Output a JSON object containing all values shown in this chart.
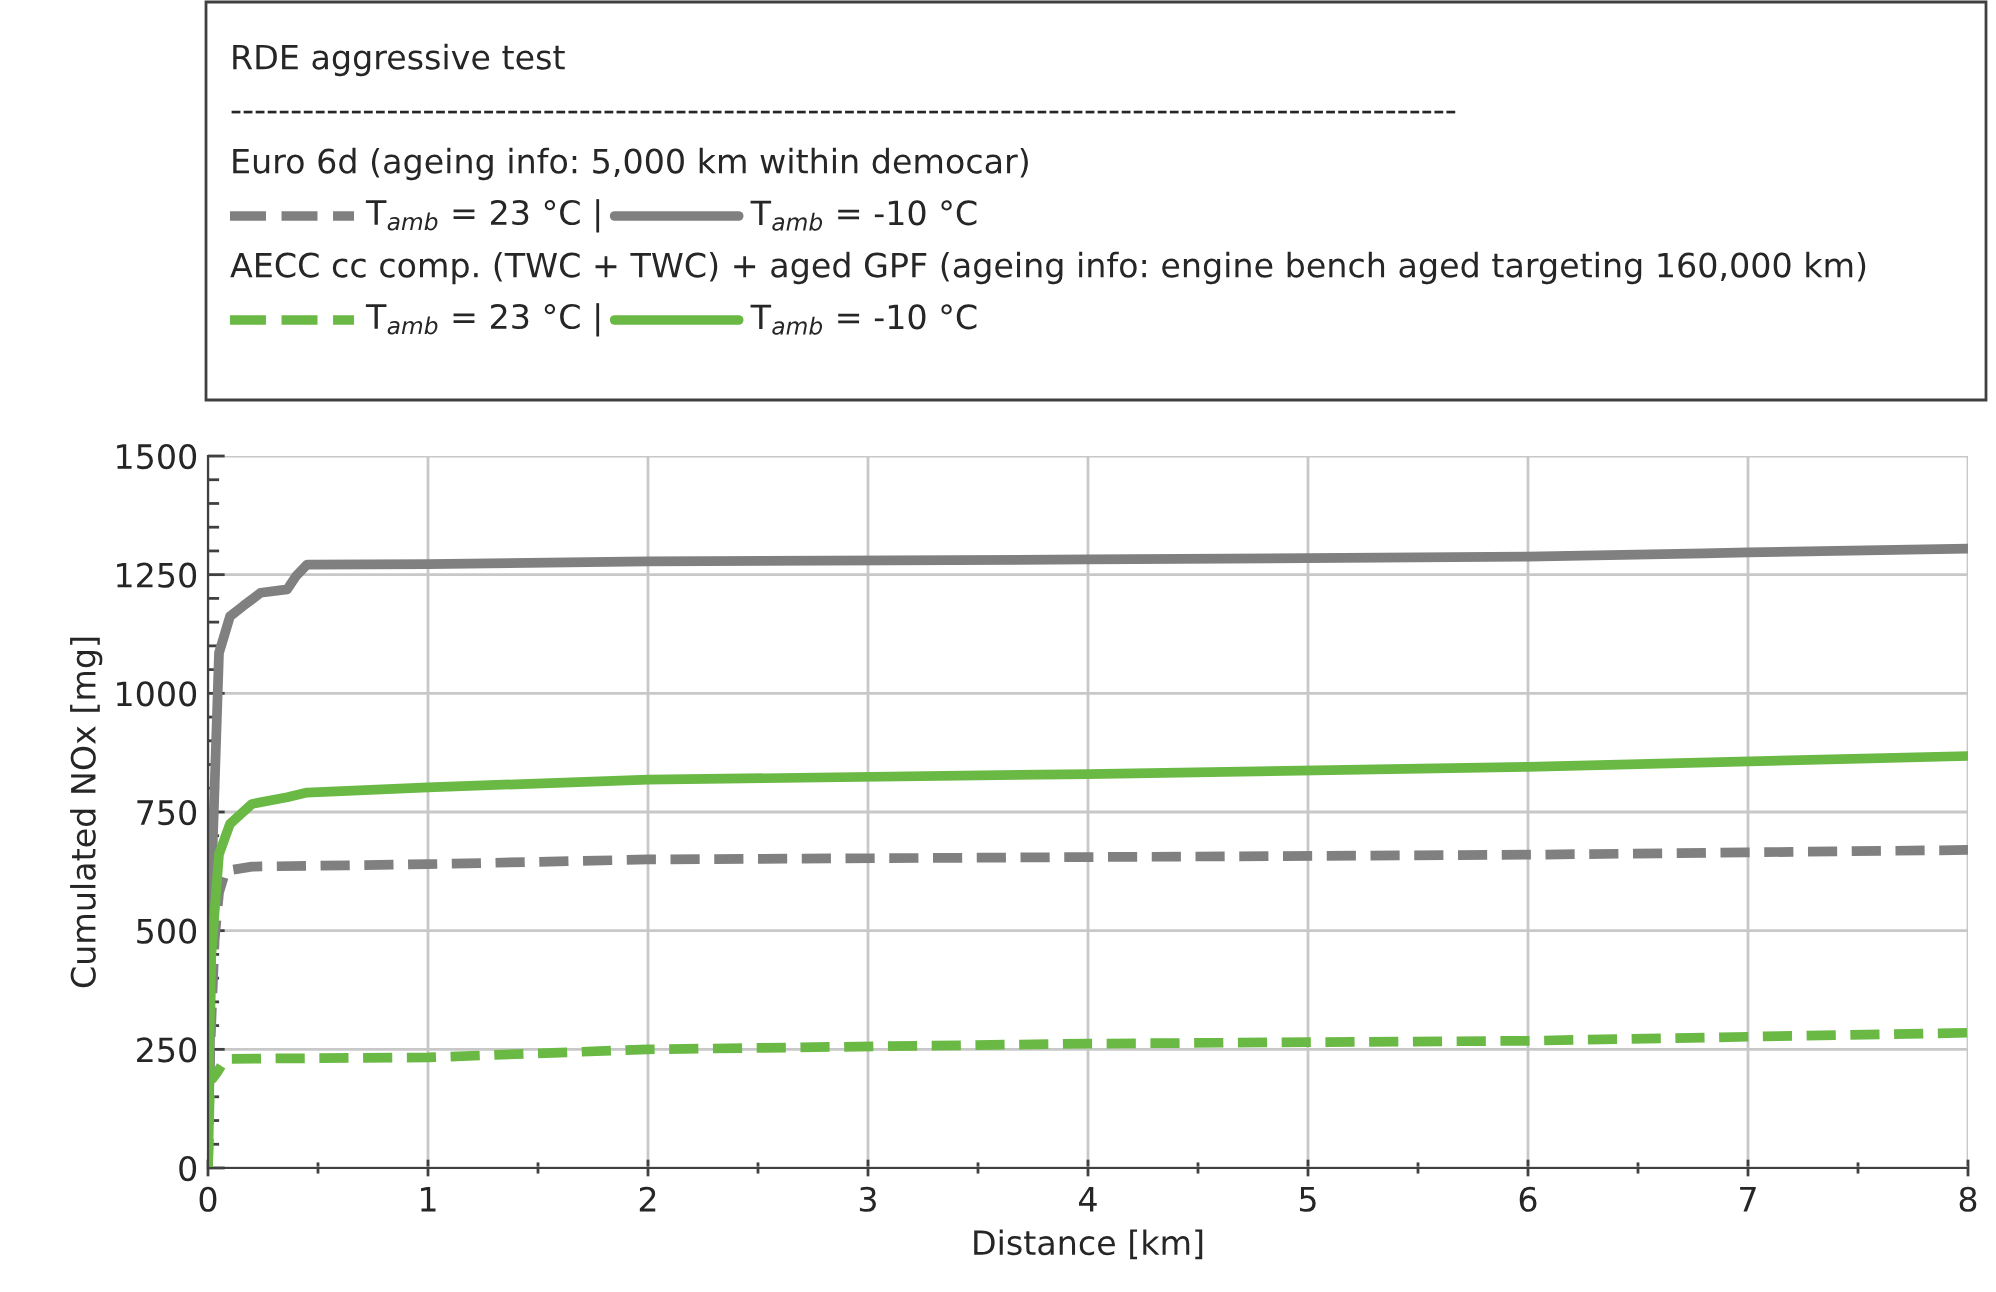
{
  "chart_data": {
    "type": "line",
    "legend_title": "RDE aggressive test",
    "xlabel": "Distance [km]",
    "ylabel": "Cumulated NOx [mg]",
    "annotations": [
      "------------------------------------------------------------------------------------------------------",
      "Euro 6d (ageing info: 5,000 km within democar)",
      "AECC cc comp. (TWC + TWC) + aged GPF (ageing info: engine bench aged targeting 160,000 km)"
    ],
    "series": [
      {
        "name": "T$_{amb}$ = 23 °C |",
        "color": "#808080",
        "line_style": "dashed",
        "x": [
          0,
          0.01,
          0.03,
          0.05,
          0.08,
          0.2,
          1,
          2,
          4,
          6,
          7,
          8
        ],
        "values": [
          0,
          250,
          480,
          580,
          626,
          635,
          640,
          650,
          655,
          660,
          665,
          670
        ]
      },
      {
        "name": "T$_{amb}$ = -10 °C",
        "color": "#808080",
        "line_style": "solid",
        "x": [
          0,
          0.01,
          0.02,
          0.05,
          0.1,
          0.16,
          0.24,
          0.36,
          0.4,
          0.45,
          1,
          2,
          4,
          6,
          6.8,
          7,
          8
        ],
        "values": [
          0,
          300,
          661,
          1085,
          1162,
          1184,
          1212,
          1219,
          1247,
          1271,
          1272,
          1278,
          1282,
          1288,
          1295,
          1297,
          1305
        ]
      },
      {
        "name": "T$_{amb}$ = 23 °C |",
        "color": "#6ab945",
        "line_style": "dashed",
        "x": [
          0,
          0.01,
          0.02,
          0.04,
          0.08,
          1,
          2,
          4,
          6,
          8
        ],
        "values": [
          0,
          200,
          188,
          200,
          230,
          233,
          250,
          262,
          268,
          285
        ]
      },
      {
        "name": "T$_{amb}$ = -10 °C",
        "color": "#6ab945",
        "line_style": "solid",
        "x": [
          0,
          0.005,
          0.015,
          0.05,
          0.1,
          0.2,
          0.36,
          0.45,
          1,
          2,
          4,
          6,
          8
        ],
        "values": [
          0,
          250,
          449,
          661,
          725,
          767,
          781,
          791,
          802,
          818,
          830,
          845,
          868
        ]
      }
    ],
    "xlim": [
      0,
      8
    ],
    "ylim": [
      0,
      1500
    ],
    "xticks": [
      0,
      {
        "value": 0.5,
        "label": null
      },
      1,
      {
        "value": 1.5,
        "label": null
      },
      2,
      {
        "value": 2.5,
        "label": null
      },
      3,
      {
        "value": 3.5,
        "label": null
      },
      4,
      {
        "value": 4.5,
        "label": null
      },
      5,
      {
        "value": 5.5,
        "label": null
      },
      6,
      {
        "value": 6.5,
        "label": null
      },
      7,
      {
        "value": 7.5,
        "label": null
      },
      8
    ],
    "yticks": [
      0,
      {
        "value": 50,
        "label": null
      },
      {
        "value": 100,
        "label": null
      },
      {
        "value": 150,
        "label": null
      },
      {
        "value": 200,
        "label": null
      },
      250,
      {
        "value": 300,
        "label": null
      },
      {
        "value": 350,
        "label": null
      },
      {
        "value": 400,
        "label": null
      },
      {
        "value": 450,
        "label": null
      },
      500,
      {
        "value": 550,
        "label": null
      },
      {
        "value": 600,
        "label": null
      },
      {
        "value": 650,
        "label": null
      },
      {
        "value": 700,
        "label": null
      },
      750,
      {
        "value": 800,
        "label": null
      },
      {
        "value": 850,
        "label": null
      },
      {
        "value": 900,
        "label": null
      },
      {
        "value": 950,
        "label": null
      },
      1000,
      {
        "value": 1050,
        "label": null
      },
      {
        "value": 1100,
        "label": null
      },
      {
        "value": 1150,
        "label": null
      },
      {
        "value": 1200,
        "label": null
      },
      1250,
      {
        "value": 1300,
        "label": null
      },
      {
        "value": 1350,
        "label": null
      },
      {
        "value": 1400,
        "label": null
      },
      {
        "value": 1450,
        "label": null
      },
      1500
    ],
    "grid": true,
    "legend": "top",
    "marker": "none"
  }
}
